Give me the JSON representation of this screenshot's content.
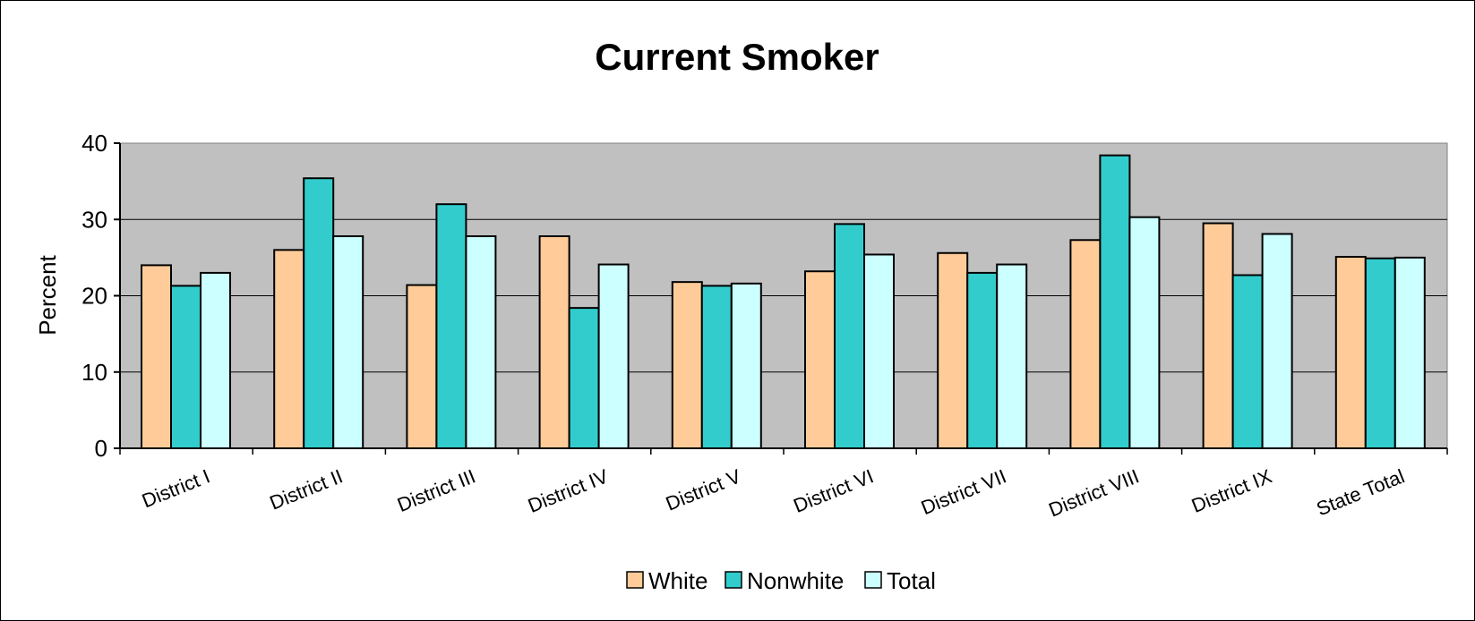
{
  "chart_data": {
    "type": "bar",
    "title": "Current Smoker",
    "xlabel": "",
    "ylabel": "Percent",
    "ylim": [
      0,
      40
    ],
    "yticks": [
      0,
      10,
      20,
      30,
      40
    ],
    "grid": true,
    "legend_position": "bottom",
    "plot_background": "#c0c0c0",
    "categories": [
      "District I",
      "District II",
      "District III",
      "District IV",
      "District V",
      "District VI",
      "District VII",
      "District VIII",
      "District IX",
      "State Total"
    ],
    "series": [
      {
        "name": "White",
        "color": "#ffcc99",
        "values": [
          24.0,
          26.0,
          21.4,
          27.8,
          21.8,
          23.2,
          25.6,
          27.3,
          29.5,
          25.1
        ]
      },
      {
        "name": "Nonwhite",
        "color": "#33cccc",
        "values": [
          21.3,
          35.4,
          32.0,
          18.4,
          21.3,
          29.4,
          23.0,
          38.4,
          22.7,
          24.9
        ]
      },
      {
        "name": "Total",
        "color": "#ccffff",
        "values": [
          23.0,
          27.8,
          27.8,
          24.1,
          21.6,
          25.4,
          24.1,
          30.3,
          28.1,
          25.0
        ]
      }
    ]
  }
}
